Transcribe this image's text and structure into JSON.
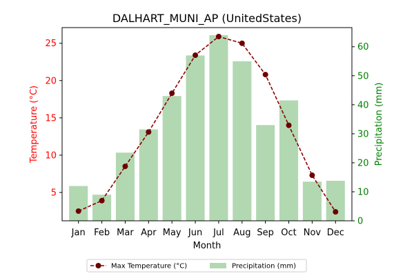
{
  "chart_data": {
    "type": "bar+line",
    "title": "DALHART_MUNI_AP (UnitedStates)",
    "xlabel": "Month",
    "ylabel_left": "Temperature (°C)",
    "ylabel_right": "Precipitation (mm)",
    "categories": [
      "Jan",
      "Feb",
      "Mar",
      "Apr",
      "May",
      "Jun",
      "Jul",
      "Aug",
      "Sep",
      "Oct",
      "Nov",
      "Dec"
    ],
    "ylim_left": [
      1.2,
      27.1
    ],
    "yticks_left": [
      5,
      10,
      15,
      20,
      25
    ],
    "ylim_right": [
      0,
      66.6
    ],
    "yticks_right": [
      0,
      10,
      20,
      30,
      40,
      50,
      60
    ],
    "grid": false,
    "legend_position": "bottom-center",
    "series": [
      {
        "name": "Max Temperature (°C)",
        "kind": "line",
        "axis": "left",
        "values": [
          2.5,
          3.9,
          8.5,
          13.1,
          18.3,
          23.4,
          25.9,
          25.0,
          20.8,
          14.0,
          7.3,
          2.4
        ]
      },
      {
        "name": "Precipitation (mm)",
        "kind": "bar",
        "axis": "right",
        "values": [
          12.0,
          9.0,
          23.5,
          31.5,
          43.0,
          57.0,
          64.0,
          55.0,
          33.0,
          41.5,
          13.5,
          13.8
        ]
      }
    ],
    "colors": {
      "line": "#8b0000",
      "marker": "#6b0000",
      "bar": "#b2d8b2",
      "left_axis": "#ff0000",
      "right_axis": "#008000"
    }
  }
}
